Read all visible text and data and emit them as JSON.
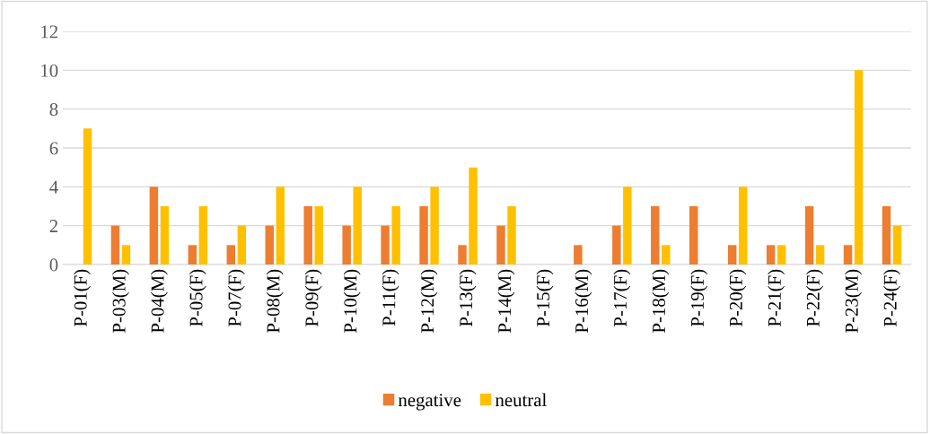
{
  "chart_data": {
    "type": "bar",
    "categories": [
      "P-01(F)",
      "P-03(M)",
      "P-04(M)",
      "P-05(F)",
      "P-07(F)",
      "P-08(M)",
      "P-09(F)",
      "P-10(M)",
      "P-11(F)",
      "P-12(M)",
      "P-13(F)",
      "P-14(M)",
      "P-15(F)",
      "P-16(M)",
      "P-17(F)",
      "P-18(M)",
      "P-19(F)",
      "P-20(F)",
      "P-21(F)",
      "P-22(F)",
      "P-23(M)",
      "P-24(F)"
    ],
    "series": [
      {
        "name": "negative",
        "color": "#ed7d31",
        "values": [
          0,
          2,
          4,
          1,
          1,
          2,
          3,
          2,
          2,
          3,
          1,
          2,
          0,
          1,
          2,
          3,
          3,
          1,
          1,
          3,
          1,
          3
        ]
      },
      {
        "name": "neutral",
        "color": "#ffc000",
        "values": [
          7,
          1,
          3,
          3,
          2,
          4,
          3,
          4,
          3,
          4,
          5,
          3,
          0,
          0,
          4,
          1,
          0,
          4,
          1,
          1,
          10,
          2
        ]
      }
    ],
    "ylim": [
      0,
      12
    ],
    "yticks": [
      0,
      2,
      4,
      6,
      8,
      10,
      12
    ],
    "grid": "y",
    "legend": "bottom"
  }
}
